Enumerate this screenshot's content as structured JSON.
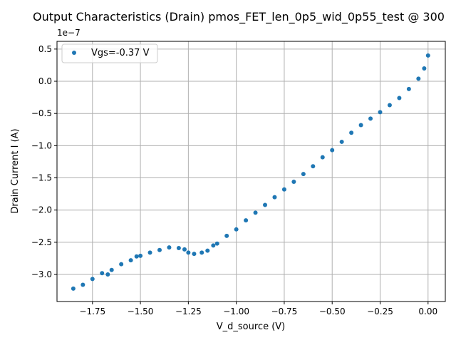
{
  "chart_data": {
    "type": "scatter",
    "title": "Output Characteristics (Drain) pmos_FET_len_0p5_wid_0p55_test @ 300",
    "xlabel": "V_d_source (V)",
    "ylabel": "Drain Current I (A)",
    "y_offset_label": "1e−7",
    "xlim": [
      -1.935,
      0.09
    ],
    "ylim": [
      -3.42,
      0.62
    ],
    "y_scale": 1e-07,
    "grid": true,
    "legend_position": "top-left",
    "x_ticks": [
      {
        "value": -1.75,
        "label": "−1.75"
      },
      {
        "value": -1.5,
        "label": "−1.50"
      },
      {
        "value": -1.25,
        "label": "−1.25"
      },
      {
        "value": -1.0,
        "label": "−1.00"
      },
      {
        "value": -0.75,
        "label": "−0.75"
      },
      {
        "value": -0.5,
        "label": "−0.50"
      },
      {
        "value": -0.25,
        "label": "−0.25"
      },
      {
        "value": 0.0,
        "label": "0.00"
      }
    ],
    "y_ticks": [
      {
        "value": 0.5,
        "label": "0.5"
      },
      {
        "value": 0.0,
        "label": "0.0"
      },
      {
        "value": -0.5,
        "label": "−0.5"
      },
      {
        "value": -1.0,
        "label": "−1.0"
      },
      {
        "value": -1.5,
        "label": "−1.5"
      },
      {
        "value": -2.0,
        "label": "−2.0"
      },
      {
        "value": -2.5,
        "label": "−2.5"
      },
      {
        "value": -3.0,
        "label": "−3.0"
      }
    ],
    "series": [
      {
        "name": "Vgs=-0.37 V",
        "color": "#1f77b4",
        "points": [
          [
            -1.85,
            -3.22
          ],
          [
            -1.8,
            -3.16
          ],
          [
            -1.75,
            -3.07
          ],
          [
            -1.7,
            -2.98
          ],
          [
            -1.67,
            -3.0
          ],
          [
            -1.65,
            -2.93
          ],
          [
            -1.6,
            -2.84
          ],
          [
            -1.55,
            -2.78
          ],
          [
            -1.52,
            -2.72
          ],
          [
            -1.5,
            -2.71
          ],
          [
            -1.45,
            -2.66
          ],
          [
            -1.4,
            -2.62
          ],
          [
            -1.35,
            -2.58
          ],
          [
            -1.3,
            -2.59
          ],
          [
            -1.27,
            -2.61
          ],
          [
            -1.25,
            -2.66
          ],
          [
            -1.22,
            -2.68
          ],
          [
            -1.18,
            -2.66
          ],
          [
            -1.15,
            -2.63
          ],
          [
            -1.12,
            -2.55
          ],
          [
            -1.1,
            -2.52
          ],
          [
            -1.05,
            -2.4
          ],
          [
            -1.0,
            -2.3
          ],
          [
            -0.95,
            -2.16
          ],
          [
            -0.9,
            -2.04
          ],
          [
            -0.85,
            -1.92
          ],
          [
            -0.8,
            -1.8
          ],
          [
            -0.75,
            -1.68
          ],
          [
            -0.7,
            -1.56
          ],
          [
            -0.65,
            -1.44
          ],
          [
            -0.6,
            -1.32
          ],
          [
            -0.55,
            -1.18
          ],
          [
            -0.5,
            -1.07
          ],
          [
            -0.45,
            -0.94
          ],
          [
            -0.4,
            -0.8
          ],
          [
            -0.35,
            -0.68
          ],
          [
            -0.3,
            -0.58
          ],
          [
            -0.25,
            -0.48
          ],
          [
            -0.2,
            -0.37
          ],
          [
            -0.15,
            -0.26
          ],
          [
            -0.1,
            -0.12
          ],
          [
            -0.05,
            0.04
          ],
          [
            -0.02,
            0.2
          ],
          [
            0.0,
            0.4
          ]
        ]
      }
    ]
  }
}
